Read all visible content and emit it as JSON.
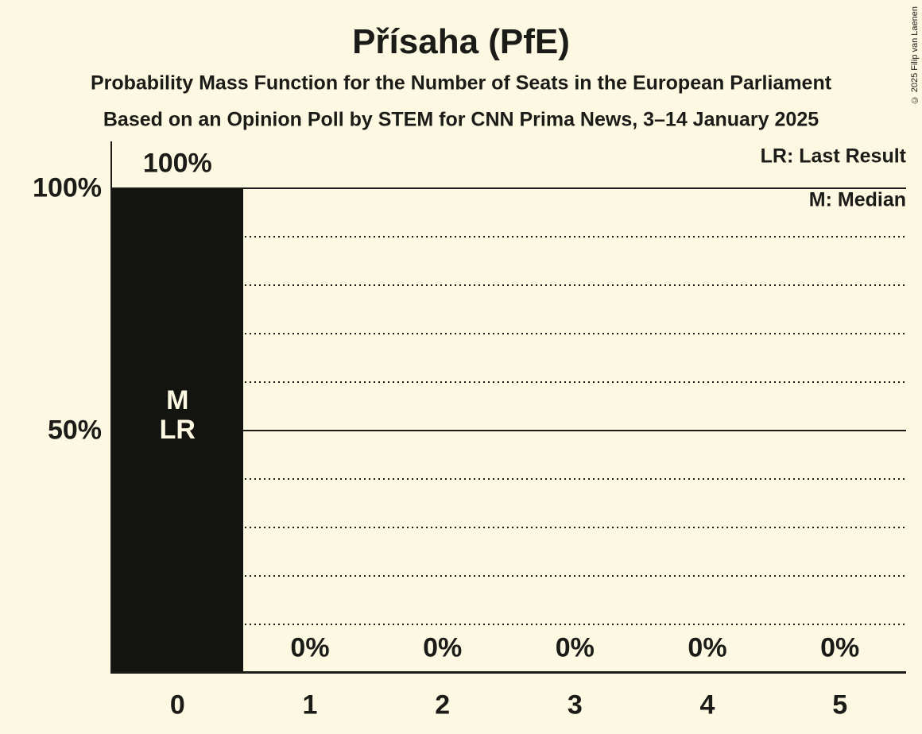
{
  "title": "Přísaha (PfE)",
  "subtitle1": "Probability Mass Function for the Number of Seats in the European Parliament",
  "subtitle2": "Based on an Opinion Poll by STEM for CNN Prima News, 3–14 January 2025",
  "copyright": "© 2025 Filip van Laenen",
  "legend": {
    "last_result": "LR: Last Result",
    "median": "M: Median"
  },
  "colors": {
    "background": "#fdf8e1",
    "bar": "#131310",
    "text": "#1b1b18",
    "bar_label_text": "#fdf8e1",
    "gridline": "#1b1b18"
  },
  "chart_data": {
    "type": "bar",
    "title": "Přísaha (PfE)",
    "categories": [
      "0",
      "1",
      "2",
      "3",
      "4",
      "5"
    ],
    "values": [
      100,
      0,
      0,
      0,
      0,
      0
    ],
    "value_labels": [
      "100%",
      "0%",
      "0%",
      "0%",
      "0%",
      "0%"
    ],
    "ylim": [
      0,
      100
    ],
    "yticks": [
      {
        "value": 100,
        "label": "100%"
      },
      {
        "value": 50,
        "label": "50%"
      }
    ],
    "solid_gridlines": [
      100,
      50
    ],
    "dotted_gridlines": [
      90,
      80,
      70,
      60,
      40,
      30,
      20,
      10
    ],
    "median_seat": "0",
    "last_result_seat": "0",
    "bar_annotation": {
      "category_index": 0,
      "lines": [
        "M",
        "LR"
      ]
    },
    "legend_position": "top-right",
    "grid": "horizontal-only"
  }
}
